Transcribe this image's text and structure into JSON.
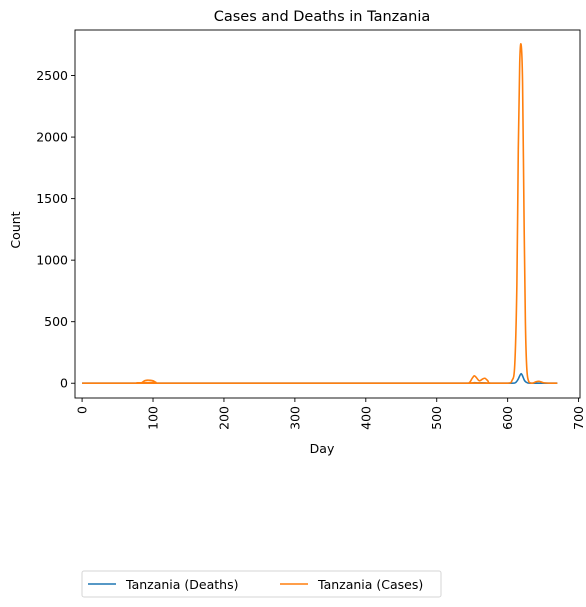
{
  "chart_data": {
    "type": "line",
    "title": "Cases and Deaths in Tanzania",
    "xlabel": "Day",
    "ylabel": "Count",
    "xlim": [
      -10,
      702
    ],
    "ylim": [
      -120,
      2870
    ],
    "xticks": [
      0,
      100,
      200,
      300,
      400,
      500,
      600,
      700
    ],
    "yticks": [
      0,
      500,
      1000,
      1500,
      2000,
      2500
    ],
    "grid": false,
    "legend_placement": "bottom-left, below axes, 2 columns",
    "series": [
      {
        "name": "Tanzania (Deaths)",
        "color": "#1f77b4",
        "x": [
          0,
          80,
          85,
          90,
          95,
          100,
          105,
          110,
          540,
          548,
          553,
          558,
          563,
          568,
          575,
          600,
          610,
          614,
          617,
          619,
          621,
          624,
          628,
          635,
          640,
          645,
          650,
          660,
          670
        ],
        "y": [
          0,
          0,
          1,
          3,
          4,
          3,
          1,
          0,
          0,
          0,
          5,
          2,
          3,
          2,
          0,
          0,
          2,
          25,
          60,
          78,
          60,
          20,
          3,
          0,
          0,
          0,
          0,
          0,
          0
        ]
      },
      {
        "name": "Tanzania (Cases)",
        "color": "#ff7f0e",
        "x": [
          0,
          80,
          85,
          88,
          92,
          96,
          100,
          104,
          110,
          540,
          546,
          550,
          553,
          556,
          560,
          565,
          568,
          572,
          576,
          600,
          606,
          610,
          613,
          615,
          617,
          619,
          621,
          623,
          625,
          627,
          630,
          635,
          640,
          645,
          650,
          660,
          670
        ],
        "y": [
          0,
          0,
          8,
          20,
          25,
          24,
          20,
          8,
          0,
          0,
          5,
          40,
          60,
          45,
          20,
          35,
          40,
          20,
          0,
          0,
          20,
          150,
          800,
          1900,
          2600,
          2750,
          2450,
          1400,
          500,
          120,
          10,
          0,
          12,
          15,
          5,
          0,
          0
        ]
      }
    ]
  }
}
